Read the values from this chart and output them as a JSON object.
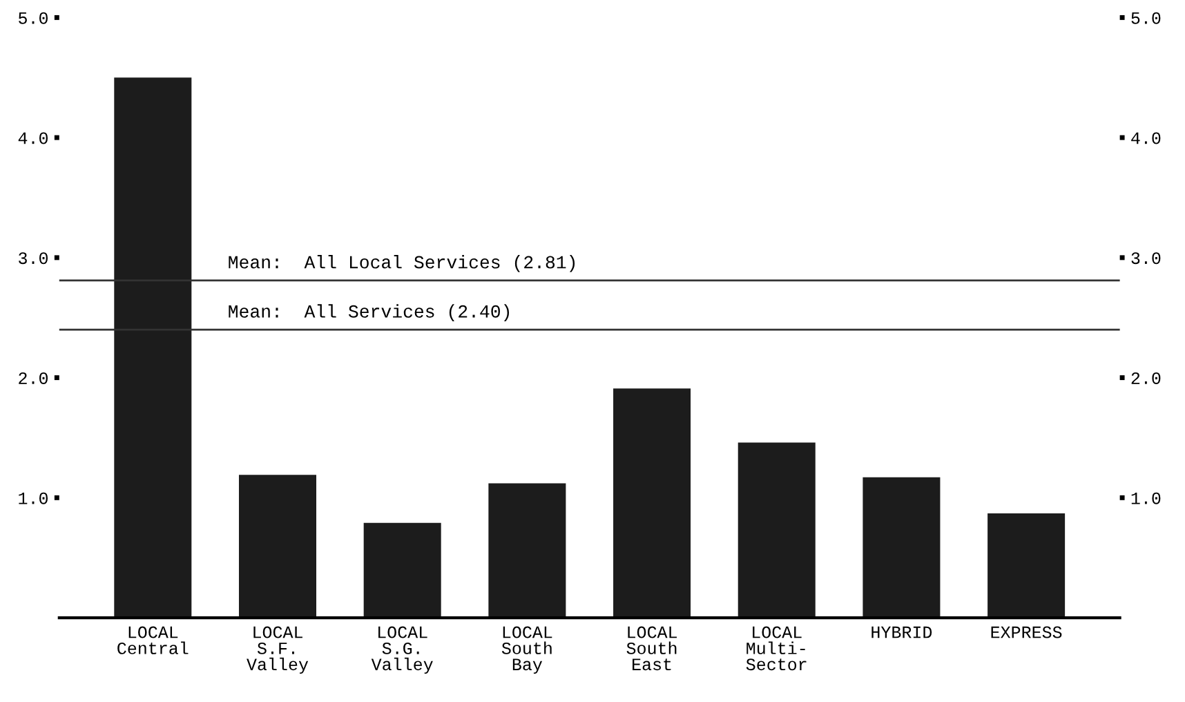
{
  "chart_data": {
    "type": "bar",
    "categories": [
      "LOCAL\nCentral",
      "LOCAL\nS.F.\nValley",
      "LOCAL\nS.G.\nValley",
      "LOCAL\nSouth\nBay",
      "LOCAL\nSouth\nEast",
      "LOCAL\nMulti-\nSector",
      "HYBRID",
      "EXPRESS"
    ],
    "values": [
      4.5,
      1.19,
      0.79,
      1.12,
      1.91,
      1.46,
      1.17,
      0.87
    ],
    "color": "#1c1c1c",
    "ylim": [
      0,
      5.0
    ],
    "yticks": [
      {
        "value": 1.0,
        "label": "1.0"
      },
      {
        "value": 2.0,
        "label": "2.0"
      },
      {
        "value": 3.0,
        "label": "3.0"
      },
      {
        "value": 4.0,
        "label": "4.0"
      },
      {
        "value": 5.0,
        "label": "5.0"
      }
    ],
    "y2lim": [
      0,
      5.0
    ],
    "y2ticks": [
      {
        "value": 1.0,
        "label": "1.0"
      },
      {
        "value": 2.0,
        "label": "2.0"
      },
      {
        "value": 3.0,
        "label": "3.0"
      },
      {
        "value": 4.0,
        "label": "4.0"
      },
      {
        "value": 5.0,
        "label": "5.0"
      }
    ],
    "ref_lines": [
      {
        "axis": "y",
        "value": 2.81,
        "label": "Mean:  All Local Services (2.81)",
        "color": "#333333"
      },
      {
        "axis": "y",
        "value": 2.4,
        "label": "Mean:  All Services (2.40)",
        "color": "#333333"
      }
    ],
    "grid": false,
    "legend": false
  }
}
